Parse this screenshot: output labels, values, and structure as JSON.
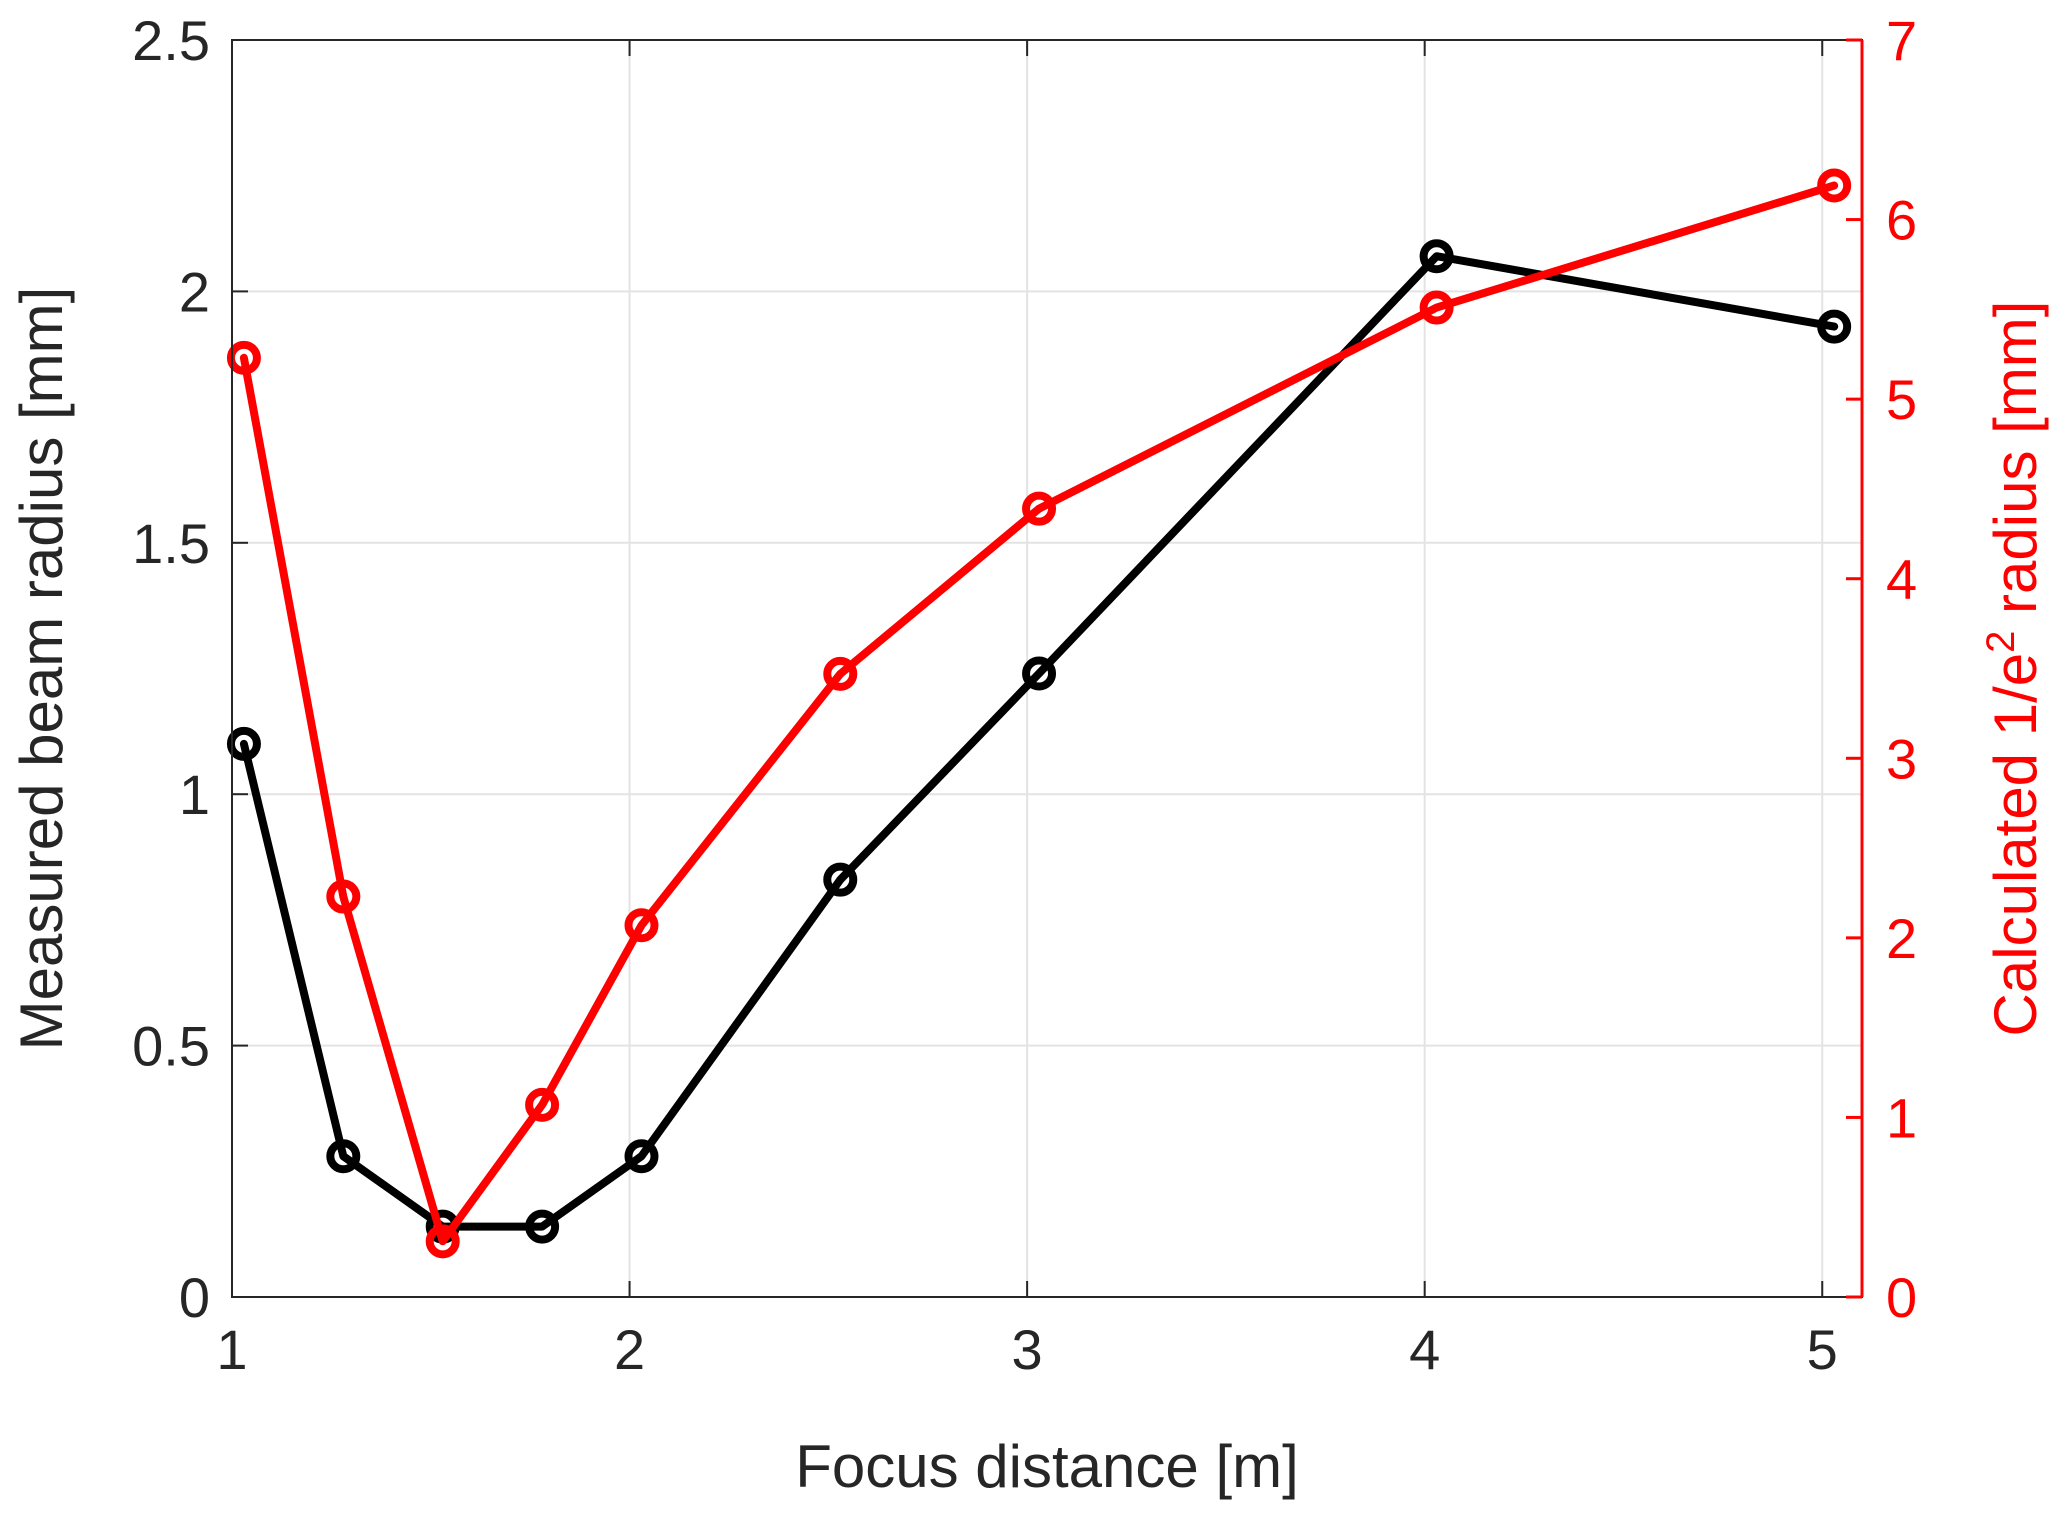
{
  "chart_data": {
    "type": "line",
    "title": "",
    "xlabel": "Focus distance [m]",
    "ylabel_left": "Measured beam radius [mm]",
    "ylabel_right_parts": [
      "Calculated 1/e",
      "2",
      " radius [mm]"
    ],
    "xlim": [
      1,
      5.1
    ],
    "ylim_left": [
      0,
      2.5
    ],
    "ylim_right": [
      0,
      7
    ],
    "x_ticks": [
      1,
      2,
      3,
      4,
      5
    ],
    "y_left_ticks": [
      "0",
      "0.5",
      "1",
      "1.5",
      "2",
      "2.5"
    ],
    "y_right_ticks": [
      0,
      1,
      2,
      3,
      4,
      5,
      6,
      7
    ],
    "grid": true,
    "legend": "none",
    "series": [
      {
        "axis": "left",
        "color": "#000000",
        "marker": "circle-open",
        "points": [
          [
            1.03,
            1.1
          ],
          [
            1.28,
            0.28
          ],
          [
            1.53,
            0.14
          ],
          [
            1.78,
            0.14
          ],
          [
            2.03,
            0.28
          ],
          [
            2.53,
            0.83
          ],
          [
            3.03,
            1.24
          ],
          [
            4.03,
            2.07
          ],
          [
            5.03,
            1.93
          ]
        ]
      },
      {
        "axis": "right",
        "color": "#ff0000",
        "marker": "circle-open",
        "points": [
          [
            1.03,
            5.23
          ],
          [
            1.28,
            2.23
          ],
          [
            1.53,
            0.31
          ],
          [
            1.78,
            1.07
          ],
          [
            2.03,
            2.07
          ],
          [
            2.53,
            3.47
          ],
          [
            3.03,
            4.39
          ],
          [
            4.03,
            5.51
          ],
          [
            5.03,
            6.19
          ]
        ]
      }
    ]
  }
}
